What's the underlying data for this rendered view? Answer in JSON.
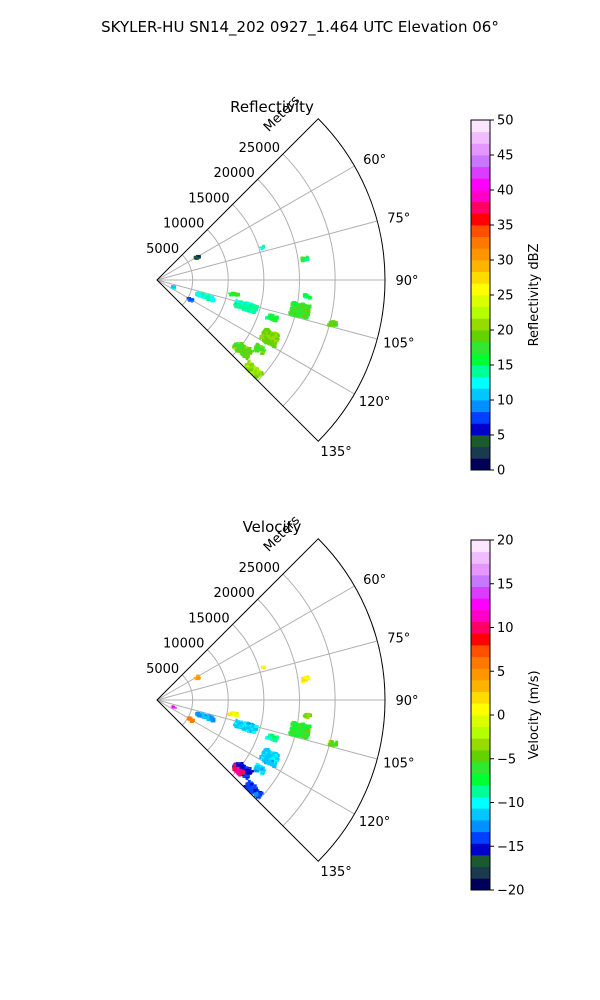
{
  "figure": {
    "suptitle": "SKYLER-HU  SN14_202  0927_1.464 UTC Elevation 06°"
  },
  "chart_data": [
    {
      "type": "polar-sector-ppi",
      "title": "Reflectivity",
      "radial_label": "Meters",
      "range_ticks": [
        5000,
        10000,
        15000,
        20000,
        25000
      ],
      "range_tick_labels": [
        "5000",
        "10000",
        "15000",
        "20000",
        "25000"
      ],
      "rmax": 32000,
      "azimuth_ticks_deg": [
        60,
        75,
        90,
        105,
        120,
        135
      ],
      "azimuth_tick_labels": [
        "60°",
        "75°",
        "90°",
        "105°",
        "120°",
        "135°"
      ],
      "azimuth_range_deg": [
        45,
        135
      ],
      "grid": true,
      "colorbar": {
        "label": "Reflectivity dBZ",
        "min": 0,
        "max": 50,
        "ticks": [
          0,
          5,
          10,
          15,
          20,
          25,
          30,
          35,
          40,
          45,
          50
        ],
        "tick_labels": [
          "0",
          "5",
          "10",
          "15",
          "20",
          "25",
          "30",
          "35",
          "40",
          "45",
          "50"
        ],
        "colors": [
          "#00005a",
          "#1a3a50",
          "#1b5a2e",
          "#0000c8",
          "#0040ff",
          "#0090ff",
          "#00c8ff",
          "#00ffff",
          "#00ff96",
          "#00ff32",
          "#32e632",
          "#64d200",
          "#96dc00",
          "#b4ff00",
          "#dcff00",
          "#ffff00",
          "#ffdc00",
          "#ffb400",
          "#ff9600",
          "#ff7800",
          "#ff5000",
          "#ff0000",
          "#ff0064",
          "#ff00c8",
          "#ff00ff",
          "#dc3cff",
          "#c878ff",
          "#e696ff",
          "#f0beff",
          "#fae6ff"
        ]
      },
      "echoes": [
        {
          "az": 102,
          "r": 20500,
          "da": 5.0,
          "dr": 2400,
          "n": 160,
          "value": 18
        },
        {
          "az": 106.5,
          "r": 13000,
          "da": 4.0,
          "dr": 3000,
          "n": 150,
          "value": 14
        },
        {
          "az": 109,
          "r": 7200,
          "da": 3.5,
          "dr": 2400,
          "n": 70,
          "value": 13
        },
        {
          "az": 108,
          "r": 17000,
          "da": 2.0,
          "dr": 1400,
          "n": 40,
          "value": 16
        },
        {
          "az": 117,
          "r": 17800,
          "da": 5.5,
          "dr": 2300,
          "n": 140,
          "value": 20
        },
        {
          "az": 124,
          "r": 17400,
          "da": 3.0,
          "dr": 1400,
          "n": 40,
          "value": 19
        },
        {
          "az": 129,
          "r": 15500,
          "da": 4.5,
          "dr": 2500,
          "n": 110,
          "value": 19
        },
        {
          "az": 133,
          "r": 18500,
          "da": 3.0,
          "dr": 2500,
          "n": 100,
          "value": 21
        },
        {
          "az": 100.5,
          "r": 11000,
          "da": 2.0,
          "dr": 1200,
          "n": 25,
          "value": 17
        },
        {
          "az": 104,
          "r": 25500,
          "da": 1.5,
          "dr": 1000,
          "n": 18,
          "value": 19
        },
        {
          "az": 82,
          "r": 21000,
          "da": 1.5,
          "dr": 800,
          "n": 10,
          "value": 16
        },
        {
          "az": 73,
          "r": 15500,
          "da": 1.0,
          "dr": 400,
          "n": 4,
          "value": 13
        },
        {
          "az": 61,
          "r": 6500,
          "da": 3.0,
          "dr": 500,
          "n": 10,
          "value": 4
        },
        {
          "az": 120,
          "r": 5500,
          "da": 3.0,
          "dr": 800,
          "n": 12,
          "value": 8
        },
        {
          "az": 113,
          "r": 2500,
          "da": 3.0,
          "dr": 500,
          "n": 6,
          "value": 12
        },
        {
          "az": 96,
          "r": 21200,
          "da": 1.5,
          "dr": 900,
          "n": 10,
          "value": 16
        }
      ]
    },
    {
      "type": "polar-sector-ppi",
      "title": "Velocity",
      "radial_label": "Meters",
      "range_ticks": [
        5000,
        10000,
        15000,
        20000,
        25000
      ],
      "range_tick_labels": [
        "5000",
        "10000",
        "15000",
        "20000",
        "25000"
      ],
      "rmax": 32000,
      "azimuth_ticks_deg": [
        60,
        75,
        90,
        105,
        120,
        135
      ],
      "azimuth_tick_labels": [
        "60°",
        "75°",
        "90°",
        "105°",
        "120°",
        "135°"
      ],
      "azimuth_range_deg": [
        45,
        135
      ],
      "grid": true,
      "colorbar": {
        "label": "Velocity (m/s)",
        "min": -20,
        "max": 20,
        "ticks": [
          -20,
          -15,
          -10,
          -5,
          0,
          5,
          10,
          15,
          20
        ],
        "tick_labels": [
          "−20",
          "−15",
          "−10",
          "−5",
          "0",
          "5",
          "10",
          "15",
          "20"
        ],
        "colors": [
          "#00005a",
          "#1a3a50",
          "#1b5a2e",
          "#0000c8",
          "#0040ff",
          "#0090ff",
          "#00c8ff",
          "#00ffff",
          "#00ff96",
          "#00ff32",
          "#32e632",
          "#64d200",
          "#96dc00",
          "#b4ff00",
          "#dcff00",
          "#ffff00",
          "#ffdc00",
          "#ffb400",
          "#ff9600",
          "#ff7800",
          "#ff5000",
          "#ff0000",
          "#ff0064",
          "#ff00c8",
          "#ff00ff",
          "#dc3cff",
          "#c878ff",
          "#e696ff",
          "#f0beff",
          "#fae6ff"
        ]
      },
      "echoes": [
        {
          "az": 102,
          "r": 20500,
          "da": 5.0,
          "dr": 2400,
          "n": 160,
          "value": -6
        },
        {
          "az": 106.5,
          "r": 13000,
          "da": 4.0,
          "dr": 3000,
          "n": 150,
          "value": -11
        },
        {
          "az": 109,
          "r": 7200,
          "da": 3.5,
          "dr": 2400,
          "n": 70,
          "value": -12
        },
        {
          "az": 108,
          "r": 17000,
          "da": 2.0,
          "dr": 1400,
          "n": 40,
          "value": -9
        },
        {
          "az": 117,
          "r": 17800,
          "da": 5.5,
          "dr": 2300,
          "n": 140,
          "value": -11
        },
        {
          "az": 124,
          "r": 17400,
          "da": 3.0,
          "dr": 1400,
          "n": 40,
          "value": -11
        },
        {
          "az": 129,
          "r": 15500,
          "da": 4.5,
          "dr": 2500,
          "n": 110,
          "value": -15
        },
        {
          "az": 131,
          "r": 15000,
          "da": 2.5,
          "dr": 1600,
          "n": 30,
          "value": 10
        },
        {
          "az": 133,
          "r": 18500,
          "da": 3.0,
          "dr": 2500,
          "n": 100,
          "value": -14
        },
        {
          "az": 100.5,
          "r": 11000,
          "da": 2.0,
          "dr": 1200,
          "n": 25,
          "value": 1
        },
        {
          "az": 104,
          "r": 25500,
          "da": 1.5,
          "dr": 1000,
          "n": 18,
          "value": -5
        },
        {
          "az": 82,
          "r": 21000,
          "da": 1.5,
          "dr": 800,
          "n": 10,
          "value": 1
        },
        {
          "az": 73,
          "r": 15500,
          "da": 1.0,
          "dr": 400,
          "n": 4,
          "value": 2
        },
        {
          "az": 61,
          "r": 6500,
          "da": 3.0,
          "dr": 500,
          "n": 10,
          "value": 4
        },
        {
          "az": 120,
          "r": 5500,
          "da": 3.0,
          "dr": 800,
          "n": 12,
          "value": 5
        },
        {
          "az": 113,
          "r": 2500,
          "da": 3.0,
          "dr": 500,
          "n": 6,
          "value": 14
        },
        {
          "az": 96,
          "r": 21200,
          "da": 1.5,
          "dr": 900,
          "n": 10,
          "value": -4
        }
      ]
    }
  ]
}
